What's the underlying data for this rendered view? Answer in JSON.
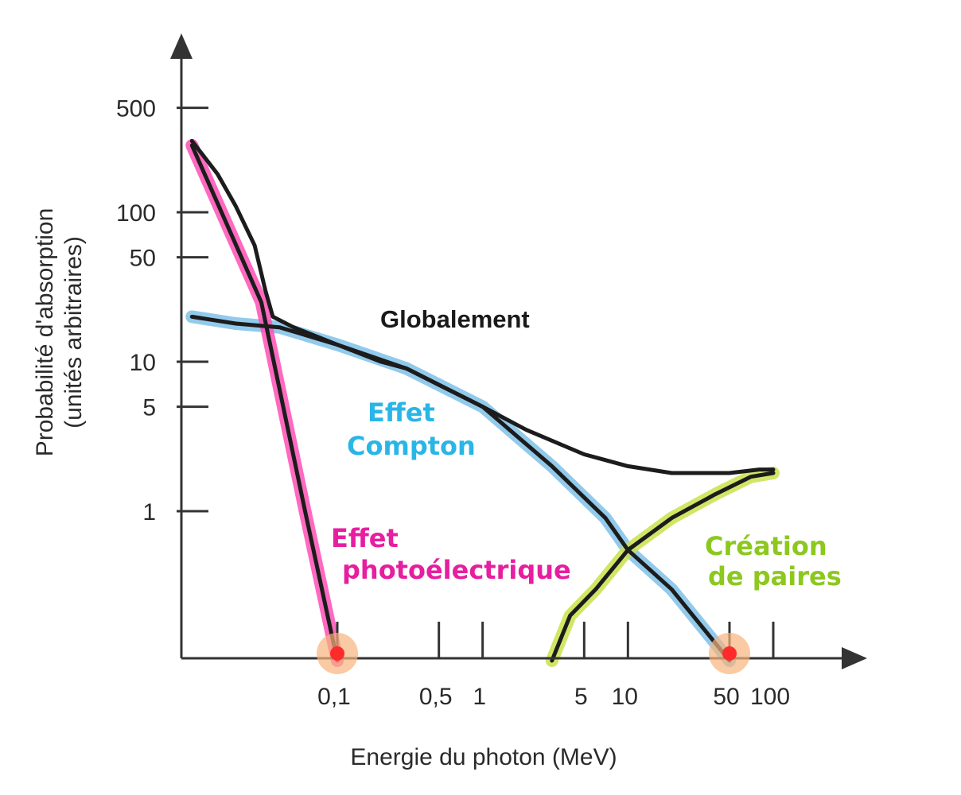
{
  "chart_data": {
    "type": "line",
    "xlabel": "Energie du photon (MeV)",
    "ylabel_line1": "Probabilité d'absorption",
    "ylabel_line2": "(unités arbitraires)",
    "x_scale": "log",
    "y_scale": "log",
    "xlim": [
      0.01,
      200
    ],
    "ylim": [
      0.1,
      1000
    ],
    "x_ticks": [
      {
        "value": 0.1,
        "label": "0,1"
      },
      {
        "value": 0.5,
        "label": "0,5"
      },
      {
        "value": 1,
        "label": "1"
      },
      {
        "value": 5,
        "label": "5"
      },
      {
        "value": 10,
        "label": "10"
      },
      {
        "value": 50,
        "label": "50"
      },
      {
        "value": 100,
        "label": "100"
      }
    ],
    "y_ticks": [
      {
        "value": 1,
        "label": "1"
      },
      {
        "value": 5,
        "label": "5"
      },
      {
        "value": 10,
        "label": "10"
      },
      {
        "value": 50,
        "label": "50"
      },
      {
        "value": 100,
        "label": "100"
      },
      {
        "value": 500,
        "label": "500"
      }
    ],
    "series": [
      {
        "name": "Globalement",
        "color": "#1c1c1c",
        "highlight": "",
        "points": [
          [
            0.01,
            300
          ],
          [
            0.015,
            180
          ],
          [
            0.02,
            110
          ],
          [
            0.027,
            60
          ],
          [
            0.032,
            30
          ],
          [
            0.036,
            20
          ],
          [
            0.05,
            17
          ],
          [
            0.1,
            13
          ],
          [
            0.2,
            10
          ],
          [
            0.3,
            9
          ],
          [
            0.5,
            7
          ],
          [
            1,
            5
          ],
          [
            2,
            3.5
          ],
          [
            5,
            2.4
          ],
          [
            10,
            2
          ],
          [
            20,
            1.8
          ],
          [
            50,
            1.8
          ],
          [
            80,
            1.9
          ],
          [
            100,
            1.9
          ]
        ]
      },
      {
        "name": "Effet Compton",
        "color": "#1c1c1c",
        "highlight": "#7fc1e8",
        "points": [
          [
            0.01,
            20
          ],
          [
            0.02,
            18
          ],
          [
            0.04,
            17
          ],
          [
            0.1,
            13
          ],
          [
            0.3,
            9
          ],
          [
            1,
            5
          ],
          [
            3,
            2
          ],
          [
            7,
            0.9
          ],
          [
            10,
            0.55
          ],
          [
            20,
            0.3
          ],
          [
            50,
            0.1
          ]
        ]
      },
      {
        "name": "Effet photoélectrique",
        "color": "#1c1c1c",
        "highlight": "#ff4fb4",
        "points": [
          [
            0.01,
            280
          ],
          [
            0.03,
            25
          ],
          [
            0.06,
            1
          ],
          [
            0.1,
            0.1
          ]
        ]
      },
      {
        "name": "Création de paires",
        "color": "#1c1c1c",
        "highlight": "#c9e24a",
        "points": [
          [
            3,
            0.1
          ],
          [
            4,
            0.2
          ],
          [
            6,
            0.3
          ],
          [
            10,
            0.55
          ],
          [
            20,
            0.9
          ],
          [
            40,
            1.3
          ],
          [
            70,
            1.7
          ],
          [
            100,
            1.8
          ]
        ]
      }
    ],
    "annotations": [
      {
        "text": "Globalement",
        "style": "print",
        "color": "#1a1a1a"
      },
      {
        "text": "Effet",
        "style": "hand",
        "color": "#29b6e6"
      },
      {
        "text": "Compton",
        "style": "hand",
        "color": "#29b6e6"
      },
      {
        "text": "Effet",
        "style": "hand",
        "color": "#e61ea0"
      },
      {
        "text": "photoélectrique",
        "style": "hand",
        "color": "#e61ea0"
      },
      {
        "text": "Création",
        "style": "hand",
        "color": "#8cc81e"
      },
      {
        "text": "de paires",
        "style": "hand",
        "color": "#8cc81e"
      }
    ],
    "markers": [
      {
        "x": 0.1,
        "color": "#ff2a2a",
        "halo": "#f7b37c"
      },
      {
        "x": 50,
        "color": "#ff2a2a",
        "halo": "#f7b37c"
      }
    ],
    "grid": false,
    "legend": "none"
  }
}
